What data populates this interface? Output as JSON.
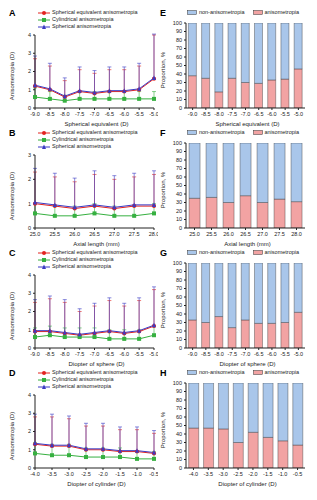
{
  "chart_data": [
    {
      "label": "A",
      "type": "line",
      "x_label": "Spherical equivalent (D)",
      "y_label": "Anisometropia (D)",
      "legend": "upper left",
      "categories": [
        "-9.0",
        "-8.5",
        "-8.0",
        "-7.5",
        "-7.0",
        "-6.5",
        "-6.0",
        "-5.5",
        "-5.0"
      ],
      "ylim": [
        0,
        4
      ],
      "yticks": [
        0,
        1,
        2,
        3,
        4
      ],
      "series": [
        {
          "name": "Spherical equivalent anisometropia",
          "color": "#e3231f",
          "marker": "circle",
          "values": [
            1.2,
            1.0,
            0.6,
            0.9,
            0.8,
            0.9,
            0.9,
            1.0,
            1.6
          ],
          "error": [
            1.5,
            1.3,
            0.9,
            1.2,
            1.1,
            1.2,
            1.2,
            1.3,
            2.4
          ]
        },
        {
          "name": "Cylindrical anisometropia",
          "color": "#36b040",
          "marker": "square",
          "values": [
            0.6,
            0.5,
            0.4,
            0.5,
            0.5,
            0.5,
            0.5,
            0.5,
            0.5
          ],
          "error": [
            0.5,
            0.4,
            0.3,
            0.4,
            0.4,
            0.4,
            0.4,
            0.4,
            0.4
          ]
        },
        {
          "name": "Spherical anisometropia",
          "color": "#3b3bc4",
          "marker": "triangle",
          "values": [
            1.25,
            1.05,
            0.65,
            0.95,
            0.85,
            0.95,
            0.95,
            1.05,
            1.65
          ],
          "error": [
            1.6,
            1.4,
            1.0,
            1.3,
            1.2,
            1.3,
            1.3,
            1.4,
            2.4
          ]
        }
      ]
    },
    {
      "label": "B",
      "type": "line",
      "x_label": "Axial length (mm)",
      "y_label": "Anisometropia (D)",
      "legend": "upper left",
      "categories": [
        "25.0",
        "25.5",
        "26.0",
        "26.5",
        "27.0",
        "27.5",
        "28.0"
      ],
      "ylim": [
        0,
        3
      ],
      "yticks": [
        0,
        1,
        2,
        3
      ],
      "series": [
        {
          "name": "Spherical equivalent anisometropia",
          "color": "#e3231f",
          "marker": "circle",
          "values": [
            1.0,
            0.9,
            0.8,
            0.9,
            0.8,
            0.9,
            0.9
          ],
          "error": [
            1.3,
            1.2,
            1.1,
            1.3,
            1.2,
            1.2,
            1.3
          ]
        },
        {
          "name": "Cylindrical anisometropia",
          "color": "#36b040",
          "marker": "square",
          "values": [
            0.6,
            0.5,
            0.5,
            0.6,
            0.5,
            0.5,
            0.6
          ],
          "error": [
            0.4,
            0.4,
            0.4,
            0.4,
            0.4,
            0.4,
            0.4
          ]
        },
        {
          "name": "Spherical anisometropia",
          "color": "#3b3bc4",
          "marker": "triangle",
          "values": [
            1.05,
            0.95,
            0.85,
            0.95,
            0.85,
            0.95,
            0.95
          ],
          "error": [
            1.4,
            1.3,
            1.2,
            1.4,
            1.3,
            1.3,
            1.4
          ]
        }
      ]
    },
    {
      "label": "C",
      "type": "line",
      "x_label": "Diopter of sphere (D)",
      "y_label": "Anisometropia (D)",
      "legend": "upper left",
      "categories": [
        "-9.0",
        "-8.5",
        "-8.0",
        "-7.5",
        "-7.0",
        "-6.5",
        "-6.0",
        "-5.5",
        "-5.0"
      ],
      "ylim": [
        0,
        4
      ],
      "yticks": [
        0,
        1,
        2,
        3,
        4
      ],
      "series": [
        {
          "name": "Spherical equivalent anisometropia",
          "color": "#e3231f",
          "marker": "circle",
          "values": [
            0.9,
            0.9,
            0.8,
            0.7,
            0.8,
            0.9,
            0.8,
            0.9,
            1.2
          ],
          "error": [
            1.6,
            1.8,
            1.7,
            1.3,
            1.5,
            1.7,
            1.5,
            1.7,
            2.0
          ]
        },
        {
          "name": "Cylindrical anisometropia",
          "color": "#36b040",
          "marker": "square",
          "values": [
            0.6,
            0.7,
            0.6,
            0.6,
            0.6,
            0.5,
            0.5,
            0.5,
            0.7
          ],
          "error": [
            0.5,
            0.5,
            0.5,
            0.5,
            0.5,
            0.5,
            0.5,
            0.5,
            0.5
          ]
        },
        {
          "name": "Spherical anisometropia",
          "color": "#3b3bc4",
          "marker": "triangle",
          "values": [
            0.95,
            0.95,
            0.85,
            0.75,
            0.85,
            0.95,
            0.85,
            0.95,
            1.25
          ],
          "error": [
            1.7,
            1.9,
            1.8,
            1.4,
            1.6,
            1.8,
            1.6,
            1.8,
            2.1
          ]
        }
      ]
    },
    {
      "label": "D",
      "type": "line",
      "x_label": "Diopter of cylinder (D)",
      "y_label": "Anisometropia (D)",
      "legend": "upper left",
      "categories": [
        "-4.0",
        "-3.5",
        "-3.0",
        "-2.5",
        "-2.0",
        "-1.5",
        "-1.0",
        "-0.5"
      ],
      "ylim": [
        0,
        4
      ],
      "yticks": [
        0,
        1,
        2,
        3,
        4
      ],
      "series": [
        {
          "name": "Spherical equivalent anisometropia",
          "color": "#e3231f",
          "marker": "circle",
          "values": [
            1.3,
            1.2,
            1.2,
            1.0,
            1.0,
            0.9,
            0.9,
            0.8
          ],
          "error": [
            1.5,
            1.6,
            1.5,
            1.3,
            1.3,
            1.2,
            1.2,
            1.1
          ]
        },
        {
          "name": "Cylindrical anisometropia",
          "color": "#36b040",
          "marker": "square",
          "values": [
            0.8,
            0.7,
            0.7,
            0.6,
            0.6,
            0.6,
            0.5,
            0.5
          ],
          "error": [
            0.6,
            0.6,
            0.6,
            0.5,
            0.5,
            0.5,
            0.4,
            0.4
          ]
        },
        {
          "name": "Spherical anisometropia",
          "color": "#3b3bc4",
          "marker": "triangle",
          "values": [
            1.35,
            1.25,
            1.25,
            1.05,
            1.05,
            0.95,
            0.95,
            0.85
          ],
          "error": [
            1.6,
            1.7,
            1.6,
            1.4,
            1.4,
            1.3,
            1.3,
            1.2
          ]
        }
      ]
    },
    {
      "label": "E",
      "type": "bar",
      "stacked": true,
      "x_label": "Spherical equivalent (D)",
      "y_label": "Proportion, %",
      "legend": "upper center",
      "categories": [
        "-9.0",
        "-8.5",
        "-8.0",
        "-7.5",
        "-7.0",
        "-6.5",
        "-6.0",
        "-5.5",
        "-5.0"
      ],
      "ylim": [
        0,
        100
      ],
      "yticks": [
        0,
        10,
        20,
        30,
        40,
        50,
        60,
        70,
        80,
        90,
        100
      ],
      "series": [
        {
          "name": "non-anisometropia",
          "color": "#a9c6ea",
          "values": [
            62,
            65,
            81,
            65,
            70,
            71,
            67,
            66,
            54
          ]
        },
        {
          "name": "anisometropia",
          "color": "#f2a3a3",
          "values": [
            38,
            35,
            19,
            35,
            30,
            29,
            33,
            34,
            46
          ]
        }
      ]
    },
    {
      "label": "F",
      "type": "bar",
      "stacked": true,
      "x_label": "Axial length (mm)",
      "y_label": "Proportion, %",
      "legend": "upper center",
      "categories": [
        "25.0",
        "25.5",
        "26.0",
        "26.5",
        "27.0",
        "27.5",
        "28.0"
      ],
      "ylim": [
        0,
        100
      ],
      "yticks": [
        0,
        10,
        20,
        30,
        40,
        50,
        60,
        70,
        80,
        90,
        100
      ],
      "series": [
        {
          "name": "non-anisometropia",
          "color": "#a9c6ea",
          "values": [
            65,
            64,
            70,
            62,
            70,
            66,
            69
          ]
        },
        {
          "name": "anisometropia",
          "color": "#f2a3a3",
          "values": [
            35,
            36,
            30,
            38,
            30,
            34,
            31
          ]
        }
      ]
    },
    {
      "label": "G",
      "type": "bar",
      "stacked": true,
      "x_label": "Diopter of sphere (D)",
      "y_label": "Proportion, %",
      "legend": "upper center",
      "categories": [
        "-9.0",
        "-8.5",
        "-8.0",
        "-7.5",
        "-7.0",
        "-6.5",
        "-6.0",
        "-5.5",
        "-5.0"
      ],
      "ylim": [
        0,
        100
      ],
      "yticks": [
        0,
        10,
        20,
        30,
        40,
        50,
        60,
        70,
        80,
        90,
        100
      ],
      "series": [
        {
          "name": "non-anisometropia",
          "color": "#a9c6ea",
          "values": [
            67,
            70,
            63,
            76,
            67,
            71,
            71,
            70,
            58
          ]
        },
        {
          "name": "anisometropia",
          "color": "#f2a3a3",
          "values": [
            33,
            30,
            37,
            24,
            33,
            29,
            29,
            30,
            42
          ]
        }
      ]
    },
    {
      "label": "H",
      "type": "bar",
      "stacked": true,
      "x_label": "Diopter of cylinder (D)",
      "y_label": "Proportion, %",
      "legend": "upper center",
      "categories": [
        "-4.0",
        "-3.5",
        "-3.0",
        "-2.5",
        "-2.0",
        "-1.5",
        "-1.0",
        "-0.5"
      ],
      "ylim": [
        0,
        100
      ],
      "yticks": [
        0,
        10,
        20,
        30,
        40,
        50,
        60,
        70,
        80,
        90,
        100
      ],
      "series": [
        {
          "name": "non-anisometropia",
          "color": "#a9c6ea",
          "values": [
            53,
            53,
            54,
            70,
            58,
            64,
            68,
            73
          ]
        },
        {
          "name": "anisometropia",
          "color": "#f2a3a3",
          "values": [
            47,
            47,
            46,
            30,
            42,
            36,
            32,
            27
          ]
        }
      ]
    }
  ]
}
